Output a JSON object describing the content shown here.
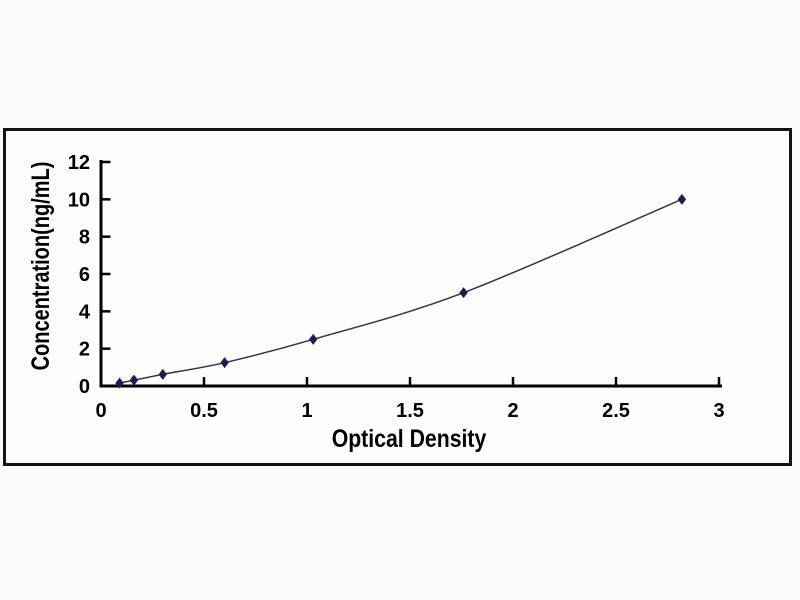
{
  "figure": {
    "kind": "ELISA standard curve plot",
    "background": "#fbfbf9",
    "frame_color": "#141414"
  },
  "chart_data": {
    "type": "line",
    "title": "",
    "xlabel": "Optical Density",
    "ylabel": "Concentration(ng/mL)",
    "x": [
      0.09,
      0.16,
      0.3,
      0.6,
      1.03,
      1.76,
      2.82
    ],
    "y": [
      0.156,
      0.312,
      0.625,
      1.25,
      2.5,
      5,
      10
    ],
    "xlim": [
      0,
      3
    ],
    "ylim": [
      0,
      12
    ],
    "x_ticks": {
      "values": [
        0,
        0.5,
        1,
        1.5,
        2,
        2.5,
        3
      ],
      "labels": [
        "0",
        "0.5",
        "1",
        "1.5",
        "2",
        "2.5",
        "3"
      ]
    },
    "y_ticks": {
      "values": [
        0,
        2,
        4,
        6,
        8,
        10,
        12
      ],
      "labels": [
        "0",
        "2",
        "4",
        "6",
        "8",
        "10",
        "12"
      ]
    },
    "grid": "off",
    "legend": "none",
    "marker": "diamond",
    "line_smooth": true,
    "colors": {
      "axis": "#000000",
      "text": "#000000",
      "curve": "#32324a",
      "marker": "#1c1c52",
      "frame": "#141414",
      "background": "#fdfdfb"
    }
  }
}
